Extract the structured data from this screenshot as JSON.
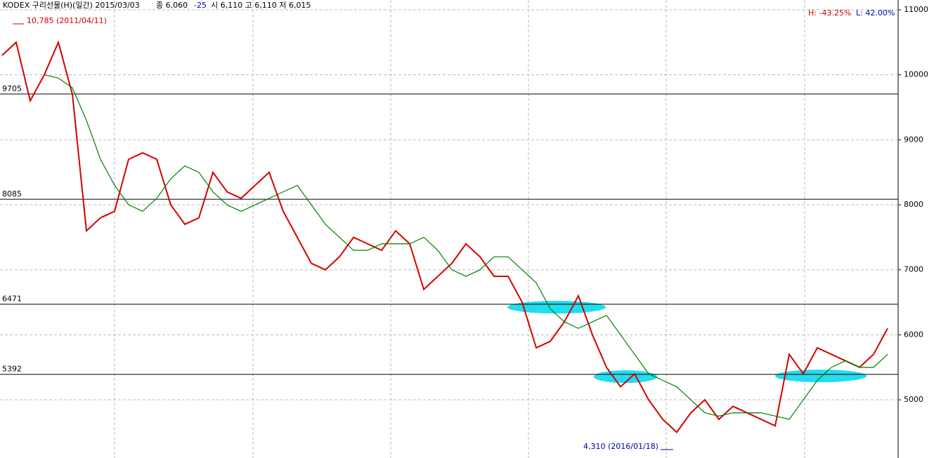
{
  "chart_data": {
    "type": "line",
    "title": "KODEX 구리선물(H)(일간) 2015/03/03",
    "quote_close": "종 6,060",
    "quote_change": "-25",
    "quote_ohl": "시 6,110 고 6,110 저 6,015",
    "high_label": "10,785 (2011/04/11)",
    "low_label": "4,310 (2016/01/18)",
    "range_high": "H: -43.25%",
    "range_low": "L: 42.00%",
    "ylim": [
      4105,
      11151
    ],
    "yticks": [
      5000,
      6000,
      7000,
      8000,
      9000,
      10000,
      11000
    ],
    "levels": [
      9705,
      8085,
      6471,
      5392
    ],
    "grid": true,
    "series": [
      {
        "color": "#d40000",
        "values": [
          10300,
          10500,
          9600,
          10000,
          10500,
          9700,
          7600,
          7800,
          7900,
          8700,
          8800,
          8700,
          8000,
          7700,
          7800,
          8500,
          8200,
          8100,
          8300,
          8500,
          7900,
          7500,
          7100,
          7000,
          7200,
          7500,
          7400,
          7300,
          7600,
          7400,
          6700,
          6900,
          7100,
          7400,
          7200,
          6900,
          6900,
          6500,
          5800,
          5900,
          6200,
          6600,
          6000,
          5500,
          5200,
          5400,
          5000,
          4700,
          4500,
          4800,
          5000,
          4700,
          4900,
          4800,
          4700,
          4600,
          5700,
          5400,
          5800,
          5700,
          5600,
          5500,
          5700,
          6100
        ]
      },
      {
        "color": "#008000",
        "values": [
          null,
          null,
          null,
          10000,
          9950,
          9800,
          9300,
          8700,
          8300,
          8000,
          7900,
          8100,
          8400,
          8600,
          8500,
          8200,
          8000,
          7900,
          8000,
          8100,
          8200,
          8300,
          8000,
          7700,
          7500,
          7300,
          7300,
          7400,
          7400,
          7400,
          7500,
          7300,
          7000,
          6900,
          7000,
          7200,
          7200,
          7000,
          6800,
          6400,
          6200,
          6100,
          6200,
          6300,
          6000,
          5700,
          5400,
          5300,
          5200,
          5000,
          4800,
          4750,
          4800,
          4800,
          4800,
          4750,
          4700,
          5000,
          5300,
          5500,
          5600,
          5500,
          5500,
          5700
        ]
      }
    ]
  }
}
